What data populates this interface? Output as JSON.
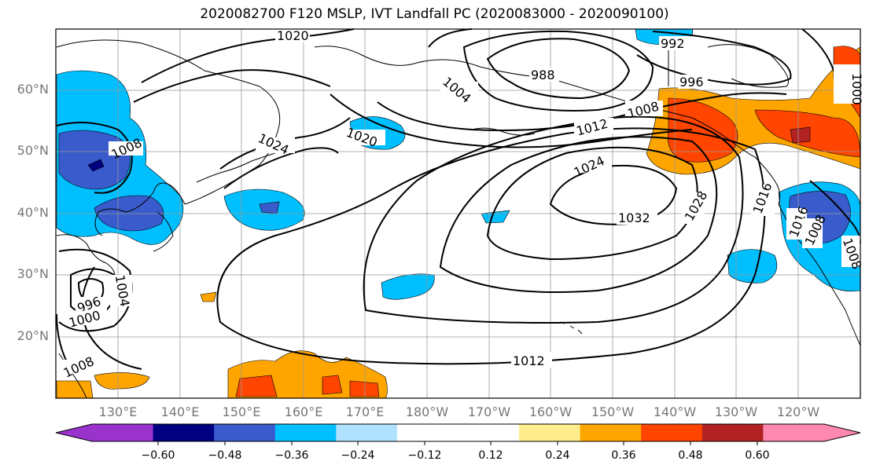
{
  "title": "2020082700 F120 MSLP, IVT Landfall PC (2020083000 - 2020090100)",
  "lat_ticks": [
    "60°N",
    "50°N",
    "40°N",
    "30°N",
    "20°N"
  ],
  "lon_ticks": [
    "130°E",
    "140°E",
    "150°E",
    "160°E",
    "170°E",
    "180°W",
    "170°W",
    "160°W",
    "150°W",
    "140°W",
    "130°W",
    "120°W"
  ],
  "contour_labels": [
    "1020",
    "992",
    "988",
    "1004",
    "996",
    "1000",
    "1008",
    "1012",
    "1008",
    "1024",
    "1016",
    "1024",
    "1032",
    "1028",
    "1020",
    "1016",
    "1008",
    "1004",
    "996",
    "1000",
    "1008",
    "1012",
    "1008"
  ],
  "colorbar": {
    "colors": [
      "#9933cc",
      "#000080",
      "#3a5bcc",
      "#00bfff",
      "#b0e2ff",
      "#ffffff",
      "#ffffff",
      "#ffec8b",
      "#ffa500",
      "#ff4500",
      "#b22222",
      "#ff88b0"
    ],
    "tick_labels": [
      "-0.60",
      "-0.48",
      "-0.36",
      "-0.24",
      "-0.12",
      "0.12",
      "0.24",
      "0.36",
      "0.48",
      "0.60"
    ]
  },
  "colors": {
    "positive_mid": "#ffa500",
    "negative_mid": "#00bfff",
    "land_outline": "#000000",
    "grid": "#999999"
  }
}
